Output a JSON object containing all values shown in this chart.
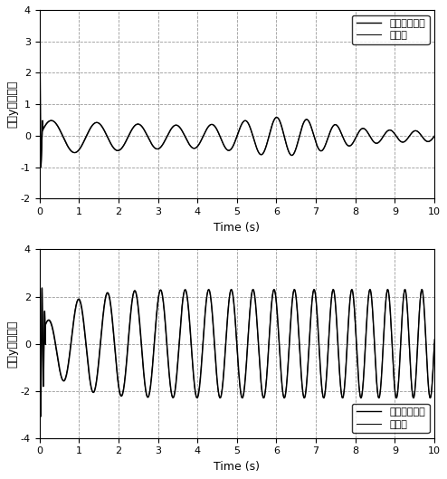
{
  "xlabel": "Time (s)",
  "ylabel1": "输出y的一阶导",
  "ylabel2": "输出y的二阶导",
  "legend1_line1": "实际的一阶导",
  "legend1_line2": "估计値",
  "legend2_line1": "实际的二阶导",
  "legend2_line2": "估计値",
  "xlim": [
    0,
    10
  ],
  "ylim1": [
    -2,
    4
  ],
  "ylim2": [
    -4,
    4
  ],
  "yticks1": [
    -2,
    -1,
    0,
    1,
    2,
    3,
    4
  ],
  "yticks2": [
    -4,
    -2,
    0,
    2,
    4
  ],
  "xticks": [
    0,
    1,
    2,
    3,
    4,
    5,
    6,
    7,
    8,
    9,
    10
  ],
  "grid_color": "#808080",
  "line_color": "#000000",
  "background_color": "#ffffff",
  "figsize": [
    4.94,
    5.29
  ],
  "dpi": 100
}
